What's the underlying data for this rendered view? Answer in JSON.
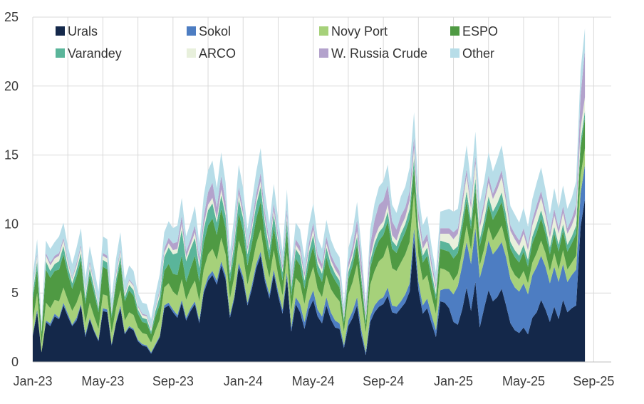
{
  "chart_data": {
    "type": "area",
    "stacked": true,
    "title": "",
    "xlabel": "",
    "ylabel": "",
    "ylim": [
      0,
      25
    ],
    "yticks": [
      0,
      5,
      10,
      15,
      20,
      25
    ],
    "grid": "vertical and horizontal",
    "legend_position": "top (inside plot)",
    "x_tick_labels": [
      "Jan-23",
      "May-23",
      "Sep-23",
      "Jan-24",
      "May-24",
      "Sep-24",
      "Jan-25",
      "May-25",
      "Sep-25"
    ],
    "x_start": "2023-01",
    "points_per_month": 4,
    "series": [
      {
        "name": "Urals",
        "color": "#14284a",
        "values": [
          1.9,
          3.6,
          0.7,
          2.9,
          2.6,
          3.3,
          3.1,
          4.1,
          3.3,
          2.6,
          3.0,
          4.1,
          1.8,
          3.1,
          2.2,
          1.5,
          3.7,
          3.6,
          1.2,
          2.8,
          3.9,
          2.0,
          2.5,
          2.3,
          1.5,
          1.2,
          1.1,
          0.6,
          1.2,
          1.8,
          3.9,
          4.1,
          3.6,
          3.2,
          4.3,
          3.0,
          3.7,
          4.2,
          2.8,
          5.0,
          5.9,
          6.3,
          5.6,
          7.0,
          6.0,
          3.2,
          4.6,
          6.9,
          5.9,
          4.1,
          5.3,
          6.8,
          7.7,
          5.8,
          4.6,
          6.4,
          4.8,
          3.5,
          6.1,
          2.2,
          4.2,
          3.6,
          2.4,
          3.8,
          4.5,
          3.3,
          2.8,
          4.1,
          3.1,
          2.5,
          2.4,
          1.0,
          2.6,
          3.2,
          4.1,
          1.9,
          0.5,
          2.9,
          3.6,
          4.0,
          4.2,
          4.8,
          3.6,
          3.5,
          3.9,
          4.3,
          5.1,
          8.9,
          5.2,
          3.5,
          3.9,
          2.8,
          1.8,
          4.4,
          4.3,
          3.9,
          2.9,
          2.7,
          3.8,
          5.4,
          3.7,
          5.8,
          2.5,
          3.9,
          5.2,
          4.4,
          4.7,
          5.3,
          4.1,
          2.8,
          2.3,
          2.1,
          2.5,
          2.0,
          3.2,
          3.6,
          4.5,
          3.8,
          2.9,
          4.0,
          3.1,
          4.5,
          3.6,
          3.9,
          4.1,
          9.8,
          11.8
        ]
      },
      {
        "name": "Sokol",
        "color": "#4d7dc2",
        "values": [
          0.1,
          0.2,
          0.0,
          0.1,
          0.2,
          0.2,
          0.1,
          0.2,
          0.2,
          0.1,
          0.2,
          0.1,
          0.2,
          0.1,
          0.1,
          0.1,
          0.2,
          0.2,
          0.1,
          0.1,
          0.2,
          0.1,
          0.1,
          0.1,
          0.1,
          0.1,
          0.1,
          0.1,
          0.1,
          0.1,
          0.2,
          0.2,
          0.2,
          0.2,
          0.2,
          0.2,
          0.2,
          0.2,
          0.2,
          0.2,
          0.3,
          0.3,
          0.3,
          0.3,
          0.3,
          0.2,
          0.2,
          0.3,
          0.3,
          0.2,
          0.3,
          0.3,
          0.3,
          0.3,
          0.3,
          0.3,
          0.3,
          0.3,
          0.4,
          0.3,
          0.5,
          0.6,
          0.5,
          0.6,
          0.7,
          0.5,
          0.5,
          0.6,
          0.5,
          0.5,
          0.4,
          0.2,
          0.4,
          0.5,
          0.6,
          0.4,
          0.2,
          0.4,
          0.5,
          0.5,
          0.5,
          0.6,
          0.5,
          0.5,
          0.5,
          0.6,
          0.6,
          0.8,
          0.6,
          0.6,
          0.7,
          0.6,
          0.5,
          0.8,
          1.0,
          1.4,
          2.0,
          2.8,
          3.2,
          3.3,
          3.4,
          3.9,
          3.6,
          3.4,
          3.6,
          3.4,
          3.5,
          3.4,
          3.5,
          3.2,
          3.1,
          3.0,
          3.2,
          2.9,
          3.1,
          3.3,
          3.2,
          3.1,
          2.8,
          2.9,
          2.7,
          2.6,
          2.2,
          2.4,
          2.6,
          2.4,
          2.5
        ]
      },
      {
        "name": "Novy Port",
        "color": "#a6d17a",
        "values": [
          1.0,
          1.2,
          0.6,
          1.3,
          1.1,
          1.0,
          1.2,
          1.1,
          1.0,
          1.0,
          1.1,
          1.0,
          0.8,
          1.1,
          1.0,
          0.8,
          1.0,
          1.0,
          0.8,
          1.0,
          1.1,
          0.9,
          1.0,
          1.0,
          0.9,
          0.8,
          0.8,
          0.7,
          1.0,
          1.2,
          1.3,
          1.4,
          1.3,
          1.4,
          1.5,
          1.3,
          1.4,
          1.5,
          1.4,
          1.5,
          1.6,
          1.6,
          1.5,
          1.7,
          1.5,
          1.2,
          1.4,
          1.6,
          1.5,
          1.3,
          1.4,
          1.5,
          1.6,
          1.4,
          1.2,
          1.4,
          1.2,
          1.0,
          1.4,
          1.2,
          1.4,
          1.5,
          1.3,
          1.5,
          1.7,
          1.5,
          1.4,
          1.6,
          1.7,
          1.8,
          1.6,
          1.0,
          1.9,
          2.1,
          2.4,
          2.2,
          1.4,
          2.3,
          2.5,
          2.8,
          2.9,
          3.1,
          2.7,
          2.6,
          2.8,
          2.9,
          3.0,
          2.6,
          1.9,
          1.8,
          1.7,
          1.4,
          1.2,
          1.6,
          1.4,
          1.2,
          1.0,
          0.9,
          1.0,
          1.2,
          1.0,
          1.1,
          0.9,
          0.9,
          1.0,
          1.0,
          1.1,
          1.2,
          1.0,
          0.9,
          0.9,
          0.9,
          0.9,
          0.8,
          0.9,
          1.0,
          1.1,
          1.0,
          0.9,
          1.0,
          0.9,
          1.0,
          0.9,
          0.9,
          1.0,
          1.3,
          1.2
        ]
      },
      {
        "name": "ESPO",
        "color": "#4f9a43",
        "values": [
          1.5,
          1.7,
          0.7,
          2.4,
          2.2,
          2.1,
          2.3,
          2.4,
          1.9,
          1.6,
          1.9,
          2.2,
          1.4,
          2.0,
          1.7,
          1.2,
          2.0,
          1.9,
          1.1,
          1.7,
          2.0,
          1.4,
          1.6,
          1.4,
          1.0,
          0.8,
          0.8,
          0.6,
          1.0,
          1.1,
          1.2,
          1.4,
          1.3,
          1.5,
          1.7,
          1.3,
          1.5,
          1.8,
          1.4,
          1.9,
          2.1,
          2.2,
          1.8,
          2.1,
          1.9,
          1.2,
          1.6,
          2.0,
          1.8,
          1.4,
          1.6,
          1.8,
          2.0,
          1.6,
          1.3,
          1.7,
          1.4,
          1.1,
          1.6,
          1.1,
          1.4,
          1.3,
          1.1,
          1.3,
          1.5,
          1.2,
          1.1,
          1.3,
          1.2,
          1.1,
          1.0,
          0.6,
          1.1,
          1.2,
          1.4,
          1.1,
          0.6,
          1.2,
          1.4,
          1.5,
          1.6,
          1.7,
          1.4,
          1.3,
          1.5,
          1.6,
          1.7,
          1.8,
          1.4,
          1.3,
          1.4,
          1.2,
          1.0,
          1.4,
          1.4,
          1.5,
          1.6,
          1.5,
          1.7,
          1.8,
          1.5,
          1.8,
          1.4,
          1.5,
          1.6,
          1.5,
          1.6,
          1.7,
          1.5,
          1.3,
          1.3,
          1.2,
          1.4,
          1.2,
          1.4,
          1.5,
          1.6,
          1.4,
          1.2,
          1.4,
          1.3,
          1.4,
          1.3,
          1.4,
          1.6,
          2.0,
          2.2
        ]
      },
      {
        "name": "Varandey",
        "color": "#5ab59a",
        "values": [
          0.5,
          0.6,
          0.2,
          0.6,
          0.5,
          0.5,
          0.6,
          0.6,
          0.5,
          0.4,
          0.5,
          0.5,
          0.4,
          0.5,
          0.4,
          0.3,
          0.5,
          0.5,
          0.3,
          0.4,
          0.5,
          0.3,
          0.4,
          0.4,
          0.3,
          0.3,
          0.3,
          0.2,
          0.4,
          0.6,
          1.0,
          1.2,
          1.4,
          1.6,
          1.9,
          1.5,
          1.4,
          1.3,
          1.0,
          1.0,
          1.1,
          1.1,
          0.9,
          1.0,
          0.9,
          0.6,
          0.8,
          1.0,
          0.9,
          0.8,
          0.9,
          1.0,
          1.1,
          0.9,
          0.7,
          0.9,
          0.8,
          0.6,
          0.8,
          0.6,
          0.7,
          0.7,
          0.6,
          0.7,
          0.8,
          0.6,
          0.6,
          0.7,
          0.6,
          0.5,
          0.5,
          0.3,
          0.5,
          0.6,
          0.6,
          0.5,
          0.3,
          0.5,
          0.6,
          0.6,
          0.6,
          0.7,
          0.6,
          0.5,
          0.6,
          0.6,
          0.7,
          0.7,
          0.6,
          0.5,
          0.6,
          0.5,
          0.4,
          0.6,
          0.6,
          0.6,
          0.6,
          0.5,
          0.6,
          0.7,
          0.6,
          0.7,
          0.5,
          0.6,
          0.6,
          0.6,
          0.6,
          0.7,
          0.6,
          0.5,
          0.5,
          0.5,
          0.5,
          0.5,
          0.5,
          0.6,
          0.6,
          0.5,
          0.5,
          0.5,
          0.5,
          0.5,
          0.5,
          0.5,
          0.6,
          0.5,
          0.5
        ]
      },
      {
        "name": "ARCO",
        "color": "#e8f0dc",
        "values": [
          0.3,
          0.4,
          0.2,
          0.4,
          0.4,
          0.4,
          0.4,
          0.4,
          0.3,
          0.3,
          0.3,
          0.4,
          0.3,
          0.3,
          0.3,
          0.2,
          0.3,
          0.3,
          0.2,
          0.3,
          0.3,
          0.2,
          0.3,
          0.3,
          0.2,
          0.2,
          0.2,
          0.2,
          0.2,
          0.3,
          0.3,
          0.3,
          0.3,
          0.3,
          0.4,
          0.3,
          0.3,
          0.4,
          0.3,
          0.3,
          0.4,
          0.4,
          0.3,
          0.4,
          0.3,
          0.3,
          0.3,
          0.4,
          0.3,
          0.3,
          0.3,
          0.3,
          0.4,
          0.3,
          0.3,
          0.3,
          0.3,
          0.2,
          0.3,
          0.2,
          0.3,
          0.3,
          0.3,
          0.3,
          0.4,
          0.3,
          0.3,
          0.3,
          0.3,
          0.3,
          0.3,
          0.2,
          0.3,
          0.3,
          0.4,
          0.3,
          0.2,
          0.3,
          0.4,
          0.4,
          0.4,
          0.5,
          0.4,
          0.4,
          0.5,
          0.5,
          0.6,
          0.7,
          0.6,
          0.5,
          0.5,
          0.4,
          0.4,
          0.5,
          0.6,
          0.7,
          0.8,
          0.9,
          1.0,
          1.1,
          0.9,
          1.1,
          0.8,
          0.9,
          1.0,
          0.9,
          1.0,
          1.1,
          0.9,
          0.8,
          0.8,
          0.7,
          0.8,
          0.7,
          0.8,
          0.9,
          0.9,
          0.8,
          0.7,
          0.8,
          0.8,
          0.8,
          0.8,
          0.8,
          0.9,
          0.9,
          1.0
        ]
      },
      {
        "name": "W. Russia Crude",
        "color": "#b3a2cc",
        "values": [
          0.1,
          0.2,
          0.0,
          0.2,
          0.2,
          0.2,
          0.2,
          0.2,
          0.2,
          0.1,
          0.2,
          0.2,
          0.1,
          0.2,
          0.1,
          0.1,
          0.2,
          0.2,
          0.1,
          0.2,
          0.2,
          0.1,
          0.1,
          0.1,
          0.1,
          0.1,
          0.1,
          0.1,
          0.1,
          0.2,
          0.3,
          0.4,
          0.5,
          0.5,
          0.6,
          0.4,
          0.4,
          0.5,
          0.4,
          0.6,
          0.9,
          1.1,
          0.8,
          1.0,
          0.7,
          0.3,
          0.4,
          0.5,
          0.4,
          0.3,
          0.4,
          0.5,
          0.6,
          0.5,
          0.4,
          0.5,
          0.4,
          0.3,
          0.5,
          0.3,
          0.4,
          0.4,
          0.3,
          0.4,
          0.5,
          0.4,
          0.4,
          0.5,
          0.4,
          0.4,
          0.4,
          0.2,
          0.4,
          0.5,
          0.8,
          0.9,
          0.4,
          0.9,
          1.3,
          1.6,
          1.5,
          1.4,
          1.0,
          0.8,
          0.8,
          0.7,
          0.7,
          0.8,
          0.6,
          0.5,
          0.5,
          0.4,
          0.3,
          0.4,
          0.4,
          0.4,
          0.5,
          0.4,
          0.5,
          0.5,
          0.4,
          0.5,
          0.4,
          0.4,
          0.5,
          0.4,
          0.5,
          0.5,
          0.4,
          0.4,
          0.4,
          0.4,
          0.4,
          0.4,
          0.4,
          0.5,
          0.5,
          0.4,
          0.4,
          0.5,
          0.4,
          0.5,
          0.4,
          0.5,
          0.6,
          2.4,
          3.4
        ]
      },
      {
        "name": "Other",
        "color": "#b7dde8",
        "values": [
          0.8,
          1.0,
          0.5,
          0.9,
          1.0,
          1.0,
          1.2,
          1.1,
          1.0,
          1.0,
          1.1,
          1.2,
          1.0,
          1.1,
          1.0,
          0.9,
          1.2,
          1.2,
          0.8,
          1.0,
          1.2,
          0.9,
          1.0,
          1.0,
          0.9,
          0.8,
          0.8,
          0.6,
          0.9,
          1.1,
          1.2,
          1.2,
          1.1,
          1.2,
          1.3,
          1.1,
          1.2,
          1.4,
          1.1,
          1.5,
          1.6,
          1.6,
          1.4,
          1.7,
          1.4,
          1.0,
          1.3,
          1.6,
          1.5,
          1.2,
          1.4,
          1.6,
          1.8,
          1.5,
          1.2,
          1.4,
          1.2,
          1.0,
          1.4,
          1.0,
          1.2,
          1.2,
          1.0,
          1.3,
          1.4,
          1.2,
          1.1,
          1.2,
          1.1,
          1.0,
          1.0,
          0.7,
          1.0,
          1.1,
          1.3,
          1.0,
          0.6,
          1.1,
          1.2,
          1.3,
          1.4,
          1.5,
          1.2,
          1.2,
          1.4,
          1.5,
          1.7,
          1.8,
          1.4,
          1.2,
          1.3,
          1.1,
          0.9,
          1.2,
          1.3,
          1.4,
          1.5,
          1.4,
          1.6,
          1.7,
          1.5,
          1.8,
          1.4,
          1.5,
          1.7,
          1.6,
          1.7,
          1.8,
          1.6,
          1.4,
          1.4,
          1.3,
          1.5,
          1.3,
          1.5,
          1.6,
          1.7,
          1.5,
          1.3,
          1.5,
          1.4,
          1.5,
          1.4,
          1.5,
          1.7,
          1.8,
          1.6
        ]
      }
    ]
  }
}
